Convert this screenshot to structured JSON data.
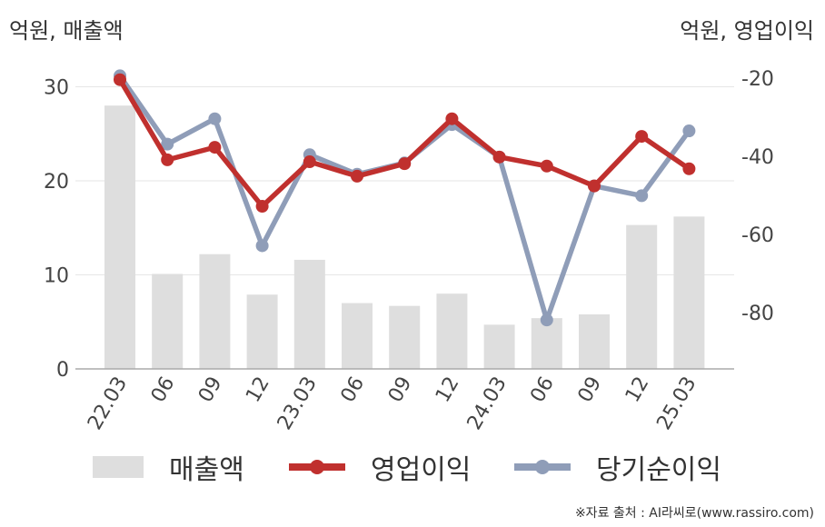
{
  "chart_data": {
    "type": "bar+line",
    "categories": [
      "22.03",
      "06",
      "09",
      "12",
      "23.03",
      "06",
      "09",
      "12",
      "24.03",
      "06",
      "09",
      "12",
      "25.03"
    ],
    "left_axis": {
      "unit_label": "억원, 매출액",
      "range": [
        0,
        30
      ],
      "ticks": [
        "0",
        "10",
        "20",
        "30"
      ]
    },
    "right_axis": {
      "unit_label": "억원, 영업이익",
      "range": [
        -95,
        -15
      ],
      "ticks": [
        "-20",
        "-40",
        "-60",
        "-80"
      ]
    },
    "series": [
      {
        "name": "매출액",
        "kind": "bar",
        "axis": "left",
        "color": "#dedede",
        "values": [
          28.0,
          10.1,
          12.2,
          7.9,
          11.6,
          7.0,
          6.7,
          8.0,
          4.7,
          5.4,
          5.8,
          15.3,
          16.2
        ]
      },
      {
        "name": "영업이익",
        "kind": "line",
        "axis": "right",
        "color": "#c0302e",
        "values": [
          -20.4,
          -40.9,
          -37.7,
          -52.8,
          -41.4,
          -45.1,
          -41.9,
          -30.4,
          -40.2,
          -42.5,
          -47.6,
          -34.9,
          -43.2
        ]
      },
      {
        "name": "당기순이익",
        "kind": "line",
        "axis": "right",
        "color": "#8f9db8",
        "values": [
          -19.4,
          -36.9,
          -30.4,
          -62.9,
          -39.6,
          -44.6,
          -41.7,
          -31.9,
          -40.2,
          -81.9,
          -47.6,
          -50.1,
          -33.5
        ]
      }
    ],
    "legend": {
      "position": "bottom"
    }
  },
  "source_text": "※자료 출처 : AI라씨로(www.rassiro.com)"
}
